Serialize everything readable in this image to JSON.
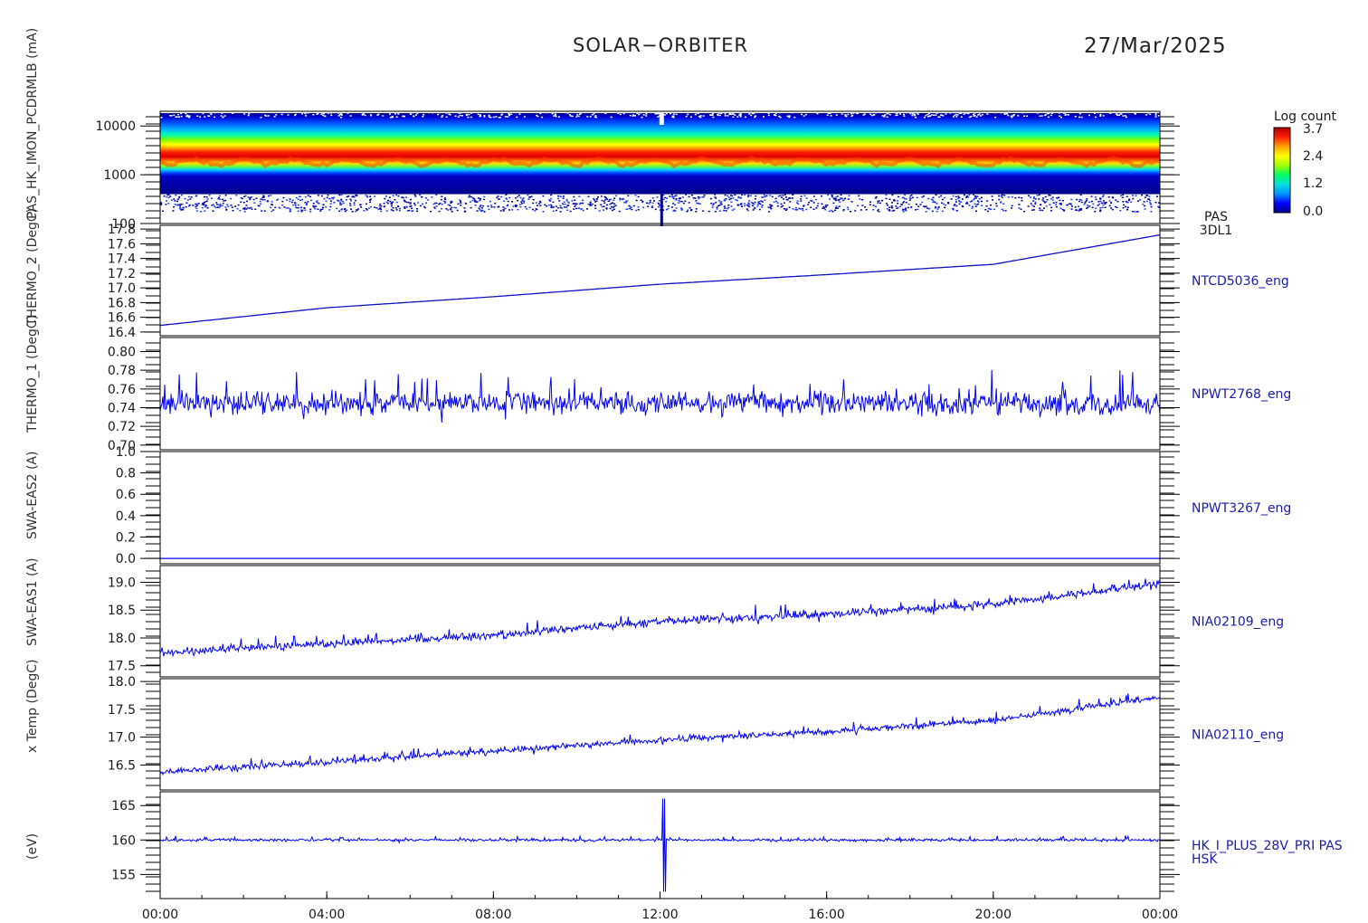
{
  "header": {
    "title": "SOLAR−ORBITER",
    "date": "27/Mar/2025"
  },
  "colorbar": {
    "title": "Log count",
    "ticks": [
      "3.7",
      "2.4",
      "1.2",
      "0.0"
    ],
    "colors": [
      "#00008b",
      "#0000ff",
      "#0096ff",
      "#00e0e0",
      "#00ff60",
      "#a0ff00",
      "#ffff00",
      "#ffa000",
      "#ff2000",
      "#b00000"
    ]
  },
  "chart_data": [
    {
      "type": "heatmap",
      "panel": "pas-3dl1-spectrogram",
      "ylabel": "(eV)",
      "yscale": "log",
      "ylim": [
        100,
        20000
      ],
      "yticks": [
        "10000",
        "1000",
        "100"
      ],
      "right_labels": [
        "PAS",
        "3DL1"
      ],
      "peak_energy_eV": 1600,
      "data_gap_hour": 12.05,
      "colors": {
        "low": "#0000cd",
        "mid": "#00ff60",
        "high": "#ff2000"
      }
    },
    {
      "type": "line",
      "panel": "ntcd5036",
      "ylabel": "x Temp (DegC)",
      "ylim": [
        16.35,
        17.85
      ],
      "yticks": [
        "17.8",
        "17.6",
        "17.4",
        "17.2",
        "17.0",
        "16.8",
        "16.6",
        "16.4"
      ],
      "right_label": "NTCD5036_eng",
      "color": "#1010cc",
      "x": [
        0,
        4,
        8,
        12,
        16,
        20,
        24
      ],
      "y": [
        16.49,
        16.73,
        16.88,
        17.05,
        17.18,
        17.32,
        17.72
      ]
    },
    {
      "type": "line",
      "panel": "npwt2768",
      "ylabel": "SWA-EAS1 (A)",
      "ylim": [
        0.695,
        0.815
      ],
      "yticks": [
        "0.80",
        "0.78",
        "0.76",
        "0.74",
        "0.72",
        "0.70"
      ],
      "right_label": "NPWT2768_eng",
      "color": "#0000ff",
      "x": [
        0,
        24
      ],
      "y": [
        0.745,
        0.745
      ],
      "noise": 0.015
    },
    {
      "type": "line",
      "panel": "npwt3267",
      "ylabel": "SWA-EAS2 (A)",
      "ylim": [
        -0.05,
        1.0
      ],
      "yticks": [
        "1.0",
        "0.8",
        "0.6",
        "0.4",
        "0.2",
        "0.0"
      ],
      "right_label": "NPWT3267_eng",
      "color": "#0000ff",
      "x": [
        0,
        24
      ],
      "y": [
        0.0,
        0.0
      ]
    },
    {
      "type": "line",
      "panel": "nia02109",
      "ylabel": "THERMO_1 (DegC)",
      "ylim": [
        17.3,
        19.3
      ],
      "yticks": [
        "19.0",
        "18.5",
        "18.0",
        "17.5"
      ],
      "right_label": "NIA02109_eng",
      "color": "#0000ff",
      "x": [
        0,
        4,
        8,
        12,
        16,
        20,
        24
      ],
      "y": [
        17.72,
        17.9,
        18.05,
        18.3,
        18.42,
        18.6,
        18.98
      ],
      "noise": 0.09
    },
    {
      "type": "line",
      "panel": "nia02110",
      "ylabel": "THERMO_2 (DegC)",
      "ylim": [
        16.05,
        18.05
      ],
      "yticks": [
        "18.0",
        "17.5",
        "17.0",
        "16.5"
      ],
      "right_label": "NIA02110_eng",
      "color": "#0000ff",
      "x": [
        0,
        4,
        8,
        12,
        16,
        20,
        24
      ],
      "y": [
        16.38,
        16.55,
        16.75,
        16.95,
        17.1,
        17.3,
        17.72
      ],
      "noise": 0.07
    },
    {
      "type": "line",
      "panel": "hk-i-plus-28v",
      "ylabel": "PAS_HK_IMON_PCDRMLB (mA)",
      "ylim": [
        151.5,
        167
      ],
      "yticks": [
        "165",
        "160",
        "155"
      ],
      "right_labels": [
        "HK_I_PLUS_28V_PRI PAS",
        "HSK"
      ],
      "color": "#0000ff",
      "x": [
        0,
        24
      ],
      "y": [
        160.0,
        160.0
      ],
      "noise": 0.25,
      "spike": {
        "hour": 12.1,
        "min": 152.5,
        "max": 166.0
      }
    }
  ],
  "xaxis": {
    "ticks": [
      "00:00",
      "04:00",
      "08:00",
      "12:00",
      "16:00",
      "20:00",
      "00:00"
    ],
    "range_hours": [
      0,
      24
    ]
  }
}
